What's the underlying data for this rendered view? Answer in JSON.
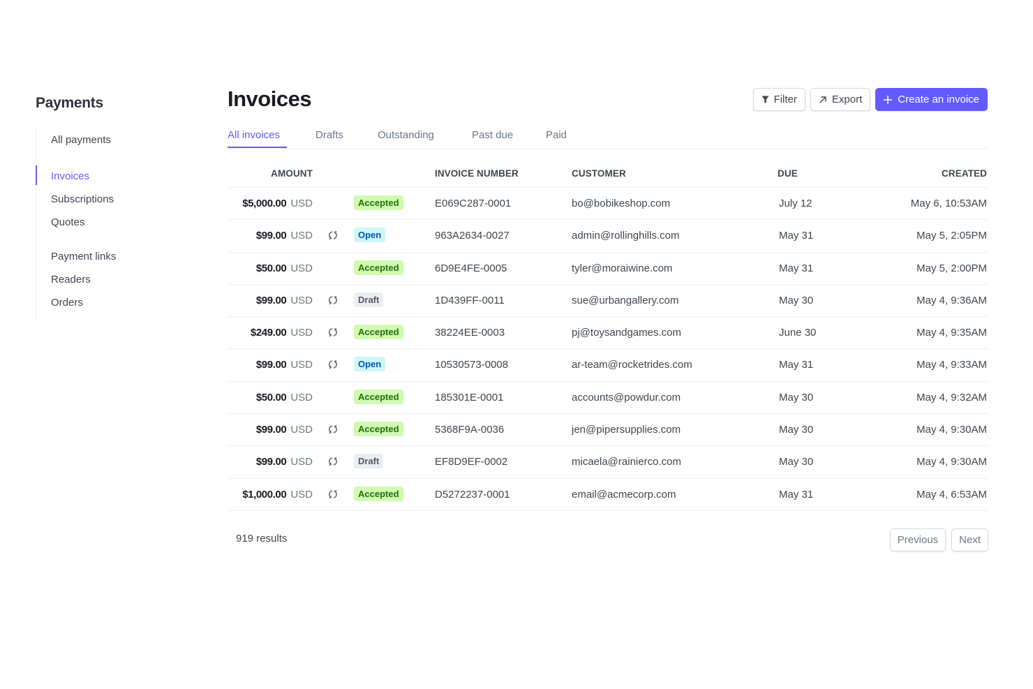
{
  "sidebar": {
    "title": "Payments",
    "items": [
      {
        "label": "All payments",
        "active": false
      },
      {
        "label": "Invoices",
        "active": true
      },
      {
        "label": "Subscriptions",
        "active": false
      },
      {
        "label": "Quotes",
        "active": false
      },
      {
        "label": "Payment links",
        "active": false
      },
      {
        "label": "Readers",
        "active": false
      },
      {
        "label": "Orders",
        "active": false
      }
    ]
  },
  "header": {
    "title": "Invoices",
    "filter_label": "Filter",
    "filter_icon": "filter-icon",
    "export_label": "Export",
    "export_icon": "arrow-up-right-icon",
    "create_label": "Create an invoice",
    "create_icon": "plus-icon"
  },
  "tabs": [
    {
      "label": "All invoices",
      "active": true
    },
    {
      "label": "Drafts",
      "active": false
    },
    {
      "label": "Outstanding",
      "active": false
    },
    {
      "label": "Past due",
      "active": false
    },
    {
      "label": "Paid",
      "active": false
    }
  ],
  "table": {
    "columns": {
      "amount": "AMOUNT",
      "invoice_number": "INVOICE NUMBER",
      "customer": "CUSTOMER",
      "due": "DUE",
      "created": "CREATED"
    },
    "rows": [
      {
        "amount": "$5,000.00",
        "currency": "USD",
        "recurring": false,
        "status": "Accepted",
        "invoice_number": "E069C287-0001",
        "customer": "bo@bobikeshop.com",
        "due": "July 12",
        "created": "May 6, 10:53AM"
      },
      {
        "amount": "$99.00",
        "currency": "USD",
        "recurring": true,
        "status": "Open",
        "invoice_number": "963A2634-0027",
        "customer": "admin@rollinghills.com",
        "due": "May 31",
        "created": "May 5, 2:05PM"
      },
      {
        "amount": "$50.00",
        "currency": "USD",
        "recurring": false,
        "status": "Accepted",
        "invoice_number": "6D9E4FE-0005",
        "customer": "tyler@moraiwine.com",
        "due": "May 31",
        "created": "May 5, 2:00PM"
      },
      {
        "amount": "$99.00",
        "currency": "USD",
        "recurring": true,
        "status": "Draft",
        "invoice_number": "1D439FF-0011",
        "customer": "sue@urbangallery.com",
        "due": "May 30",
        "created": "May 4, 9:36AM"
      },
      {
        "amount": "$249.00",
        "currency": "USD",
        "recurring": true,
        "status": "Accepted",
        "invoice_number": "38224EE-0003",
        "customer": "pj@toysandgames.com",
        "due": "June 30",
        "created": "May 4, 9:35AM"
      },
      {
        "amount": "$99.00",
        "currency": "USD",
        "recurring": true,
        "status": "Open",
        "invoice_number": "10530573-0008",
        "customer": "ar-team@rocketrides.com",
        "due": "May 31",
        "created": "May 4, 9:33AM"
      },
      {
        "amount": "$50.00",
        "currency": "USD",
        "recurring": false,
        "status": "Accepted",
        "invoice_number": "185301E-0001",
        "customer": "accounts@powdur.com",
        "due": "May 30",
        "created": "May 4, 9:32AM"
      },
      {
        "amount": "$99.00",
        "currency": "USD",
        "recurring": true,
        "status": "Accepted",
        "invoice_number": "5368F9A-0036",
        "customer": "jen@pipersupplies.com",
        "due": "May 30",
        "created": "May 4, 9:30AM"
      },
      {
        "amount": "$99.00",
        "currency": "USD",
        "recurring": true,
        "status": "Draft",
        "invoice_number": "EF8D9EF-0002",
        "customer": "micaela@rainierco.com",
        "due": "May 30",
        "created": "May 4, 9:30AM"
      },
      {
        "amount": "$1,000.00",
        "currency": "USD",
        "recurring": true,
        "status": "Accepted",
        "invoice_number": "D5272237-0001",
        "customer": "email@acmecorp.com",
        "due": "May 31",
        "created": "May 4, 6:53AM"
      }
    ]
  },
  "footer": {
    "results": "919 results",
    "previous_label": "Previous",
    "next_label": "Next"
  },
  "colors": {
    "accent": "#635bff",
    "accepted_bg": "#d1fab3",
    "accepted_fg": "#217005",
    "open_bg": "#cff5f6",
    "open_fg": "#0055bc",
    "draft_bg": "#ebeef1",
    "draft_fg": "#545969"
  }
}
